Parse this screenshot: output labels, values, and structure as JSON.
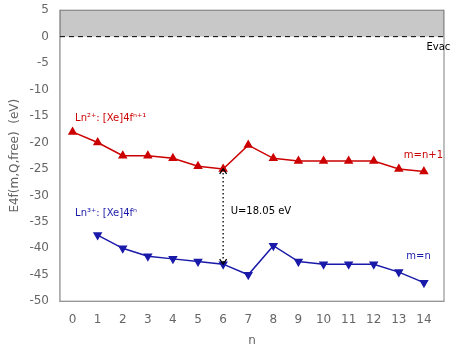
{
  "chart_data": {
    "type": "line",
    "xlabel": "n",
    "ylabel": "E4f(m,Q,free)  (eV)",
    "xlim": [
      -0.5,
      14.8
    ],
    "ylim": [
      -50,
      5
    ],
    "xticks": [
      0,
      1,
      2,
      3,
      4,
      5,
      6,
      7,
      8,
      9,
      10,
      11,
      12,
      13,
      14
    ],
    "yticks": [
      5,
      0,
      -5,
      -10,
      -15,
      -20,
      -25,
      -30,
      -35,
      -40,
      -45,
      -50
    ],
    "grid": false,
    "series": [
      {
        "color": "#cc0000",
        "marker": "triangle-up",
        "line_style": "solid",
        "x": [
          0,
          1,
          2,
          3,
          4,
          5,
          6,
          7,
          8,
          9,
          10,
          11,
          12,
          13,
          14
        ],
        "values": [
          -18.0,
          -20.0,
          -22.5,
          -22.5,
          -23.0,
          -24.5,
          -25.0,
          -20.5,
          -23.0,
          -23.5,
          -23.5,
          -23.5,
          -23.5,
          -25.0,
          -25.5
        ]
      },
      {
        "color": "#1a1aaa",
        "marker": "triangle-down",
        "line_style": "solid",
        "x": [
          1,
          2,
          3,
          4,
          5,
          6,
          7,
          8,
          9,
          10,
          11,
          12,
          13,
          14
        ],
        "values": [
          -37.5,
          -40.0,
          -41.5,
          -42.0,
          -42.5,
          -43.0,
          -45.0,
          -39.5,
          -42.5,
          -43.0,
          -43.0,
          -43.0,
          -44.5,
          -46.5
        ]
      }
    ],
    "bands": [
      {
        "from": 0,
        "to": 5,
        "color": "#c8c8c8"
      }
    ],
    "reference_lines": [
      {
        "y": 0,
        "color": "#000000",
        "line_style": "dashed"
      }
    ],
    "arrows": [
      {
        "x": 6,
        "from": -25.0,
        "to": -43.0,
        "color": "#000000",
        "line_style": "dotted"
      }
    ],
    "annotations": [
      {
        "text": "U=18.05 eV",
        "x": 6.3,
        "y": -33.0,
        "color": "#000000"
      },
      {
        "text": "Evac",
        "x": 14.1,
        "y": -2.0,
        "color": "#000000"
      },
      {
        "text": "Ln²⁺: [Xe]4fⁿ⁺¹",
        "x": 0.1,
        "y": -15.5,
        "color": "#cc0000"
      },
      {
        "text": "Ln³⁺: [Xe]4fⁿ",
        "x": 0.1,
        "y": -33.5,
        "color": "#1a1aaa"
      },
      {
        "text": "m=n+1",
        "x": 13.2,
        "y": -22.5,
        "color": "#cc0000"
      },
      {
        "text": "m=n",
        "x": 13.3,
        "y": -41.5,
        "color": "#1a1aaa"
      }
    ]
  }
}
